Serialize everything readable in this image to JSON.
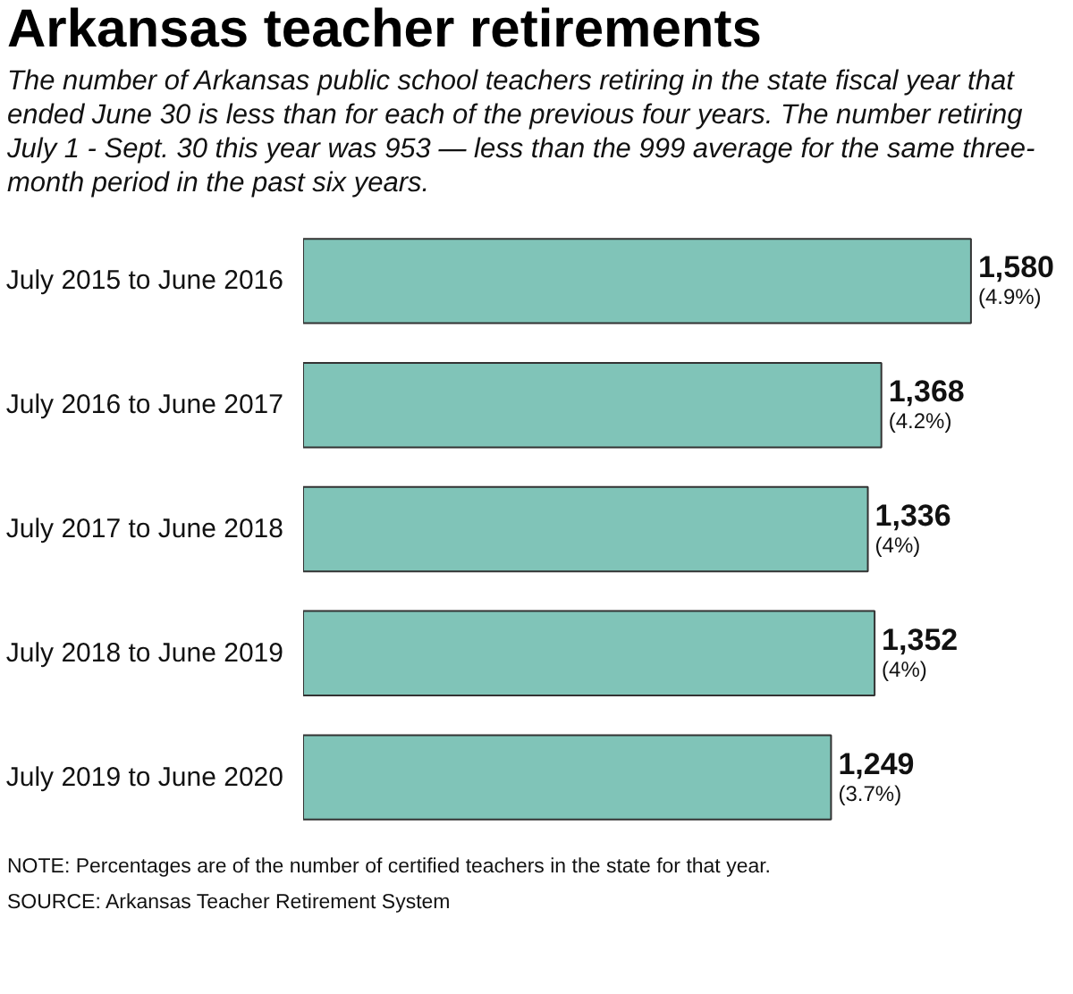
{
  "chart_data": {
    "type": "bar",
    "orientation": "horizontal",
    "title": "Arkansas teacher retirements",
    "subtitle": "The number of Arkansas public school teachers retiring in the state fiscal year that ended June 30 is less than for each of the previous four years. The number retiring July 1 - Sept. 30 this year was 953 — less than the 999 average for the same three-month period in the past six years.",
    "categories": [
      "July 2015 to June 2016",
      "July 2016 to June 2017",
      "July 2017 to June 2018",
      "July 2018 to June 2019",
      "July 2019 to June 2020"
    ],
    "values": [
      1580,
      1368,
      1336,
      1352,
      1249
    ],
    "value_labels": [
      "1,580\n(4.9%)",
      "1,368\n(4.2%)",
      "1,336\n(4%)",
      "1,352\n(4%)",
      "1,249\n(3.7%)"
    ],
    "color": "#80c4b8",
    "grid": false,
    "annotations": [
      "NOTE: Percentages are of the number of certified teachers in the state for that year.",
      "SOURCE: Arkansas Teacher Retirement System"
    ]
  }
}
